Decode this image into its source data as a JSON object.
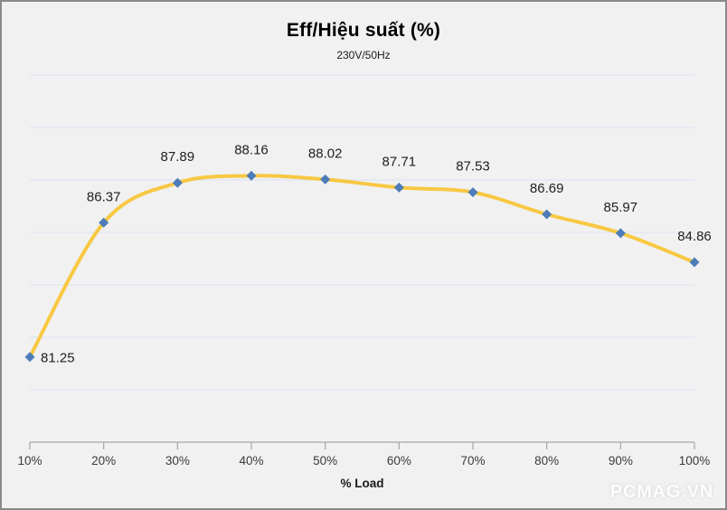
{
  "chart": {
    "title": "Eff/Hiệu suất (%)",
    "subtitle": "230V/50Hz",
    "xlabel": "% Load",
    "watermark": "PCMAG.VN"
  },
  "chart_data": {
    "type": "line",
    "smooth": true,
    "title": "Eff/Hiệu suất (%)",
    "subtitle": "230V/50Hz",
    "xlabel": "% Load",
    "ylabel": "",
    "categories": [
      "10%",
      "20%",
      "30%",
      "40%",
      "50%",
      "60%",
      "70%",
      "80%",
      "90%",
      "100%"
    ],
    "series": [
      {
        "name": "Eff/Hiệu suất (%)",
        "values": [
          81.25,
          86.37,
          87.89,
          88.16,
          88.02,
          87.71,
          87.53,
          86.69,
          85.97,
          84.86
        ]
      }
    ],
    "data_labels": true,
    "first_label_position": "right",
    "other_label_position": "above",
    "ylim": [
      78,
      92
    ],
    "y_gridline_step": 2,
    "y_axis_labels_visible": false,
    "grid": true,
    "legend_position": "none",
    "colors": {
      "line": "#F8C843",
      "marker": "#4D7CB8",
      "gridline": "#D9E1F2",
      "axis": "#A6A6A6",
      "background": "#F1F1F1",
      "frame_border": "#8A8A8A",
      "label_text": "#1F1F1F",
      "tick_text": "#3A3A3A",
      "watermark_text": "#FDFDFD"
    }
  }
}
